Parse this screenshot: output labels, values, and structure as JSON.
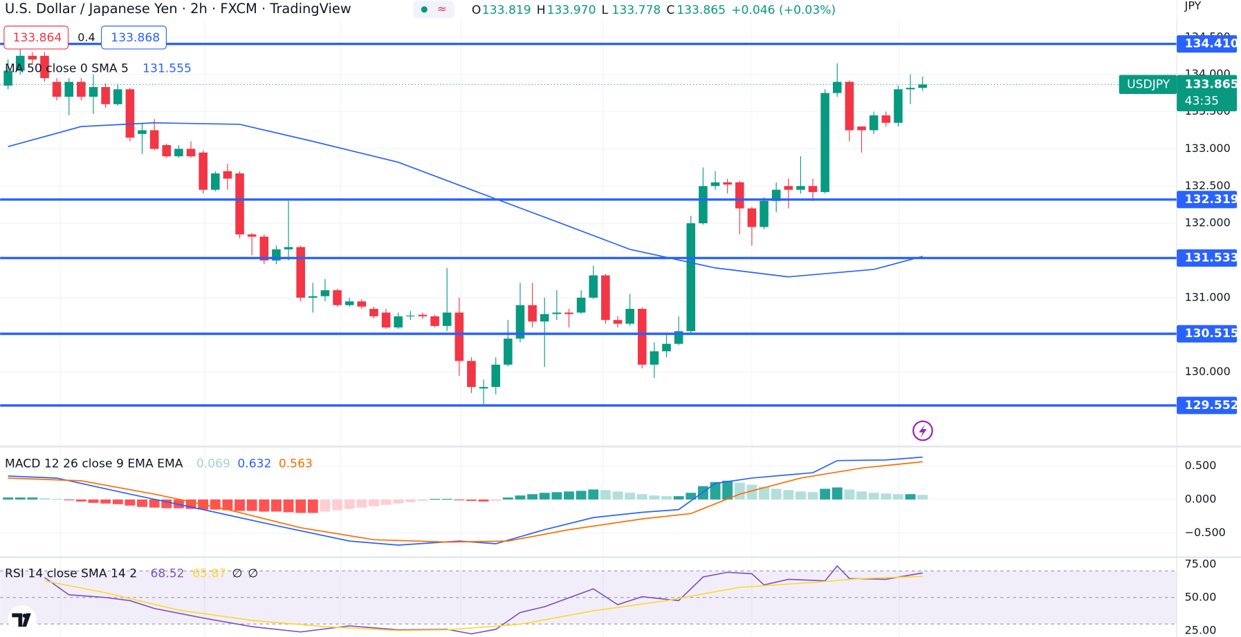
{
  "header": {
    "title": "U.S. Dollar / Japanese Yen · 2h · FXCM · TradingView",
    "ohlc": [
      {
        "letter": "O",
        "value": "133.819"
      },
      {
        "letter": "H",
        "value": "133.970"
      },
      {
        "letter": "L",
        "value": "133.778"
      },
      {
        "letter": "C",
        "value": "133.865"
      }
    ],
    "change": "+0.046 (+0.03%)",
    "bid": 133.864,
    "spread": 0.4,
    "ask": 133.868
  },
  "chart_data": [
    {
      "type": "candlestick",
      "symbol": "USDJPY",
      "currency": "JPY",
      "countdown": "43:35",
      "up_color": "#089981",
      "down_color": "#f23645",
      "open": [
        133.85,
        134.05,
        134.25,
        134.25,
        133.9,
        133.7,
        133.9,
        133.7,
        133.83,
        133.6,
        133.8,
        133.2,
        133.25,
        133.05,
        132.9,
        133.0,
        132.95,
        132.45,
        132.7,
        132.67,
        131.85,
        131.82,
        131.5,
        131.65,
        131.68,
        131.0,
        131.02,
        131.1,
        130.9,
        130.95,
        130.85,
        130.8,
        130.6,
        130.75,
        130.77,
        130.75,
        130.62,
        130.8,
        130.15,
        129.78,
        129.8,
        130.1,
        130.45,
        130.9,
        130.68,
        130.78,
        130.8,
        130.8,
        131.0,
        131.3,
        130.7,
        130.65,
        130.85,
        130.1,
        130.28,
        130.38,
        130.55,
        132.0,
        132.5,
        132.55,
        132.55,
        132.2,
        131.95,
        132.3,
        132.5,
        132.45,
        132.5,
        132.42,
        133.75,
        133.9,
        133.3,
        133.25,
        133.45,
        133.35,
        133.8,
        133.819
      ],
      "high": [
        134.2,
        134.35,
        134.3,
        134.3,
        133.95,
        133.95,
        133.95,
        134.0,
        133.88,
        133.87,
        133.82,
        133.35,
        133.4,
        133.07,
        133.05,
        133.1,
        132.98,
        132.7,
        132.8,
        132.7,
        131.87,
        131.85,
        131.7,
        132.3,
        131.7,
        131.2,
        131.25,
        131.12,
        131.0,
        130.98,
        130.88,
        130.85,
        130.8,
        130.82,
        130.8,
        130.77,
        131.4,
        131.0,
        130.2,
        129.9,
        130.2,
        130.7,
        131.2,
        131.2,
        131.0,
        131.1,
        130.85,
        131.1,
        131.43,
        131.32,
        130.75,
        131.05,
        130.87,
        130.4,
        130.5,
        130.75,
        132.1,
        132.75,
        132.7,
        132.6,
        132.57,
        132.22,
        132.35,
        132.55,
        132.6,
        132.9,
        132.6,
        133.8,
        134.15,
        133.92,
        133.3,
        133.5,
        133.5,
        133.85,
        134.0,
        133.97
      ],
      "low": [
        133.8,
        134.0,
        134.15,
        133.9,
        133.65,
        133.45,
        133.65,
        133.47,
        133.55,
        133.58,
        133.1,
        132.93,
        132.98,
        132.88,
        132.88,
        132.88,
        132.4,
        132.43,
        132.45,
        131.8,
        131.57,
        131.45,
        131.45,
        131.5,
        130.95,
        130.8,
        130.95,
        130.88,
        130.88,
        130.85,
        130.72,
        130.58,
        130.58,
        130.7,
        130.72,
        130.6,
        130.55,
        129.95,
        129.72,
        129.55,
        129.7,
        130.08,
        130.4,
        130.6,
        130.07,
        130.7,
        130.6,
        130.78,
        130.98,
        130.65,
        130.6,
        130.62,
        130.05,
        129.92,
        130.2,
        130.36,
        130.52,
        131.98,
        132.45,
        132.4,
        131.85,
        131.7,
        131.92,
        132.15,
        132.2,
        132.4,
        132.3,
        132.4,
        133.7,
        133.1,
        132.95,
        133.2,
        133.3,
        133.3,
        133.6,
        133.778
      ],
      "close": [
        134.05,
        134.25,
        134.2,
        133.95,
        133.7,
        133.9,
        133.7,
        133.83,
        133.6,
        133.8,
        133.15,
        133.25,
        133.0,
        132.9,
        133.0,
        132.9,
        132.45,
        132.67,
        132.6,
        131.85,
        131.82,
        131.5,
        131.65,
        131.68,
        131.0,
        131.02,
        131.1,
        130.9,
        130.95,
        130.88,
        130.75,
        130.6,
        130.75,
        130.76,
        130.75,
        130.62,
        130.8,
        130.15,
        129.8,
        129.8,
        130.1,
        130.45,
        130.9,
        130.68,
        130.78,
        130.8,
        130.78,
        131.0,
        131.3,
        130.7,
        130.65,
        130.85,
        130.1,
        130.28,
        130.38,
        130.55,
        132.0,
        132.5,
        132.55,
        132.52,
        132.2,
        131.95,
        132.3,
        132.45,
        132.45,
        132.5,
        132.42,
        133.75,
        133.9,
        133.25,
        133.25,
        133.45,
        133.35,
        133.8,
        133.82,
        133.865
      ],
      "series": [
        {
          "name": "MA 50 close 0 SMA 5",
          "color": "#2962ff",
          "x": [
            0,
            6,
            12,
            19,
            25,
            32,
            38,
            45,
            51,
            58,
            64,
            71,
            75
          ],
          "values": [
            133.03,
            133.3,
            133.35,
            133.33,
            133.1,
            132.82,
            132.45,
            132.02,
            131.65,
            131.4,
            131.28,
            131.38,
            131.555
          ]
        }
      ],
      "levels": [
        {
          "value": 134.41,
          "label": "134.410"
        },
        {
          "value": 132.319,
          "label": "132.319"
        },
        {
          "value": 131.533,
          "label": "131.533"
        },
        {
          "value": 130.515,
          "label": "130.515"
        },
        {
          "value": 129.552,
          "label": "129.552"
        }
      ],
      "level_color": "#2962ff",
      "ylim": [
        129.0,
        135.0
      ],
      "yticks": [
        {
          "value": 134.5,
          "label": "134.500"
        },
        {
          "value": 134.0,
          "label": "134.000"
        },
        {
          "value": 133.5,
          "label": "133.500"
        },
        {
          "value": 133.0,
          "label": "133.000"
        },
        {
          "value": 132.5,
          "label": "132.500"
        },
        {
          "value": 132.0,
          "label": "132.000"
        },
        {
          "value": 131.5,
          "label": "131.500"
        },
        {
          "value": 131.0,
          "label": "131.000"
        },
        {
          "value": 130.5,
          "label": "130.500"
        },
        {
          "value": 130.0,
          "label": "130.000"
        }
      ],
      "grid": true
    },
    {
      "type": "macd",
      "title": "MACD 12 26 close 9 EMA EMA",
      "values": [
        0.03,
        0.03,
        0.03,
        0.02,
        0.01,
        -0.01,
        -0.03,
        -0.05,
        -0.06,
        -0.07,
        -0.09,
        -0.11,
        -0.12,
        -0.13,
        -0.13,
        -0.14,
        -0.15,
        -0.15,
        -0.16,
        -0.17,
        -0.17,
        -0.18,
        -0.18,
        -0.19,
        -0.2,
        -0.2,
        -0.18,
        -0.16,
        -0.14,
        -0.12,
        -0.1,
        -0.08,
        -0.06,
        -0.04,
        -0.02,
        0.01,
        0.01,
        -0.01,
        -0.02,
        -0.03,
        -0.02,
        0.03,
        0.06,
        0.08,
        0.1,
        0.11,
        0.12,
        0.13,
        0.15,
        0.14,
        0.12,
        0.1,
        0.08,
        0.06,
        0.05,
        0.05,
        0.1,
        0.2,
        0.26,
        0.28,
        0.25,
        0.22,
        0.19,
        0.16,
        0.14,
        0.12,
        0.11,
        0.16,
        0.18,
        0.15,
        0.12,
        0.1,
        0.09,
        0.08,
        0.08,
        0.069
      ],
      "colors": [
        "#26a69a",
        "#b2dfdb",
        "#ff5252",
        "#ffcdd2"
      ],
      "value_color": "#a3d4cf",
      "series": [
        {
          "color": "#2962ff",
          "x": [
            0,
            4,
            10,
            16,
            22,
            28,
            32,
            37,
            40,
            44,
            48,
            52,
            55,
            58,
            61,
            66,
            68,
            72,
            75
          ],
          "values": [
            0.35,
            0.32,
            0.08,
            -0.15,
            -0.39,
            -0.62,
            -0.68,
            -0.62,
            -0.66,
            -0.45,
            -0.27,
            -0.19,
            -0.15,
            0.24,
            0.32,
            0.4,
            0.58,
            0.59,
            0.632
          ]
        },
        {
          "color": "#ff6d00",
          "x": [
            0,
            6,
            12,
            18,
            24,
            30,
            36,
            41,
            46,
            52,
            56,
            60,
            65,
            70,
            75
          ],
          "values": [
            0.32,
            0.28,
            0.08,
            -0.15,
            -0.42,
            -0.6,
            -0.635,
            -0.62,
            -0.45,
            -0.29,
            -0.21,
            0.08,
            0.32,
            0.47,
            0.563
          ]
        }
      ],
      "ylim": [
        -0.86,
        0.79
      ],
      "yticks": [
        {
          "value": 0.5,
          "label": "0.500"
        },
        {
          "value": 0,
          "label": "0.000"
        },
        {
          "value": -0.5,
          "label": "−0.500"
        }
      ],
      "grid": true
    },
    {
      "type": "rsi",
      "title": "RSI 14 close SMA 14 2",
      "empty_labels": [
        "∅",
        "∅"
      ],
      "series": [
        {
          "color": "#7e57c2",
          "x": [
            3,
            5,
            8,
            10,
            12,
            16,
            20,
            24,
            28,
            32,
            36,
            38,
            40,
            42,
            44,
            48,
            50,
            52,
            55,
            57,
            59,
            61,
            62,
            64,
            67,
            68,
            69,
            72,
            75
          ],
          "values": [
            65,
            52,
            50,
            47.6,
            41.7,
            34.5,
            28,
            24,
            28.6,
            25.6,
            26,
            22.6,
            26,
            38.7,
            43,
            56.5,
            44.6,
            50.6,
            47.6,
            65.5,
            69,
            67.9,
            59.5,
            63.7,
            62.5,
            73.8,
            64.3,
            63.7,
            68.52
          ]
        },
        {
          "color": "#fdd835",
          "x": [
            3,
            8,
            14,
            20,
            26,
            32,
            36,
            42,
            48,
            54,
            60,
            66,
            70,
            75
          ],
          "values": [
            62.5,
            53.6,
            40.5,
            32.7,
            28,
            25,
            25.6,
            29.8,
            39.9,
            47.6,
            57.7,
            61.3,
            64.3,
            65.87
          ]
        }
      ],
      "levels": [
        70,
        50,
        30
      ],
      "band_color": "#7e57c2",
      "ylim": [
        20.2,
        80.4
      ],
      "yticks": [
        {
          "value": 75,
          "label": "75.00"
        },
        {
          "value": 50,
          "label": "50.00"
        },
        {
          "value": 25,
          "label": "25.00"
        }
      ],
      "grid": false
    }
  ]
}
